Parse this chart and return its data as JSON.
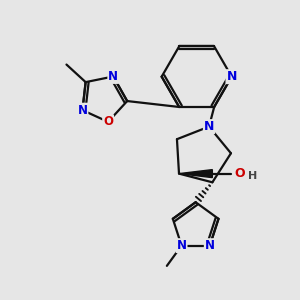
{
  "bg_color": "#e6e6e6",
  "bond_color": "#111111",
  "N_color": "#0000dd",
  "O_color": "#cc0000",
  "bond_lw": 1.6,
  "font_size": 9.0,
  "xlim": [
    0.5,
    9.5
  ],
  "ylim": [
    0.5,
    9.5
  ]
}
